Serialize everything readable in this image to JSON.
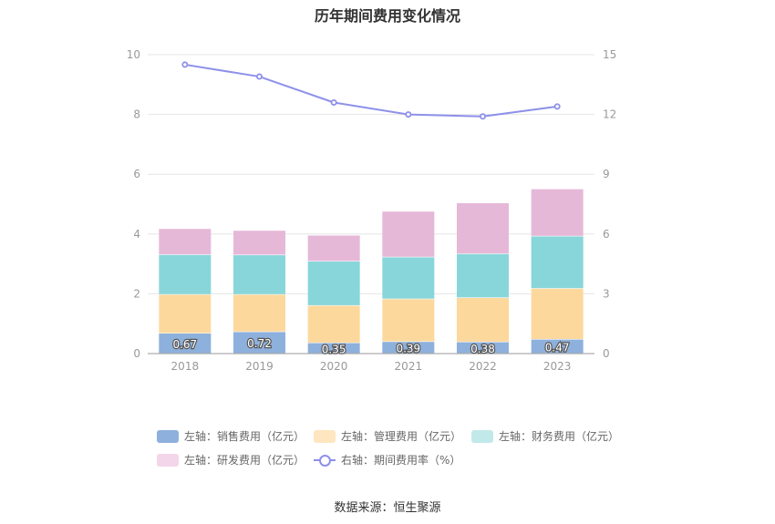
{
  "title": "历年期间费用变化情况",
  "source": "数据来源：恒生聚源",
  "chart_data": {
    "type": "bar",
    "stacked": true,
    "categories": [
      "2018",
      "2019",
      "2020",
      "2021",
      "2022",
      "2023"
    ],
    "left_axis": {
      "ylim": [
        0,
        10
      ],
      "ticks": [
        "0",
        "2",
        "4",
        "6",
        "8",
        "10"
      ]
    },
    "right_axis": {
      "ylim": [
        0,
        15
      ],
      "ticks": [
        "0",
        "3",
        "6",
        "9",
        "12",
        "15"
      ]
    },
    "grid": true,
    "legend_position": "bottom",
    "series": [
      {
        "name": "左轴：销售费用（亿元）",
        "axis": "left",
        "type": "bar",
        "color": "#8eb0dc",
        "values": [
          0.67,
          0.72,
          0.35,
          0.39,
          0.38,
          0.47
        ],
        "labels": [
          "0.67",
          "0.72",
          "0.35",
          "0.39",
          "0.38",
          "0.47"
        ]
      },
      {
        "name": "左轴：管理费用（亿元）",
        "axis": "left",
        "type": "bar",
        "color": "#fdd89c",
        "values": [
          1.3,
          1.25,
          1.25,
          1.43,
          1.48,
          1.7
        ]
      },
      {
        "name": "左轴：财务费用（亿元）",
        "axis": "left",
        "type": "bar",
        "color": "#88d6da",
        "values": [
          1.33,
          1.32,
          1.48,
          1.4,
          1.47,
          1.75
        ]
      },
      {
        "name": "左轴：研发费用（亿元）",
        "axis": "left",
        "type": "bar",
        "color": "#e6b8d8",
        "values": [
          0.87,
          0.82,
          0.87,
          1.53,
          1.7,
          1.58
        ]
      },
      {
        "name": "右轴：期间费用率（%）",
        "axis": "right",
        "type": "line",
        "color": "#8e90ea",
        "values": [
          14.5,
          13.9,
          12.6,
          12.0,
          11.9,
          12.4
        ]
      }
    ]
  },
  "legend_colors": [
    "#8eb0dc",
    "#fee6c0",
    "#c2e9ea",
    "#f3d6ea",
    "#8e90ea"
  ]
}
